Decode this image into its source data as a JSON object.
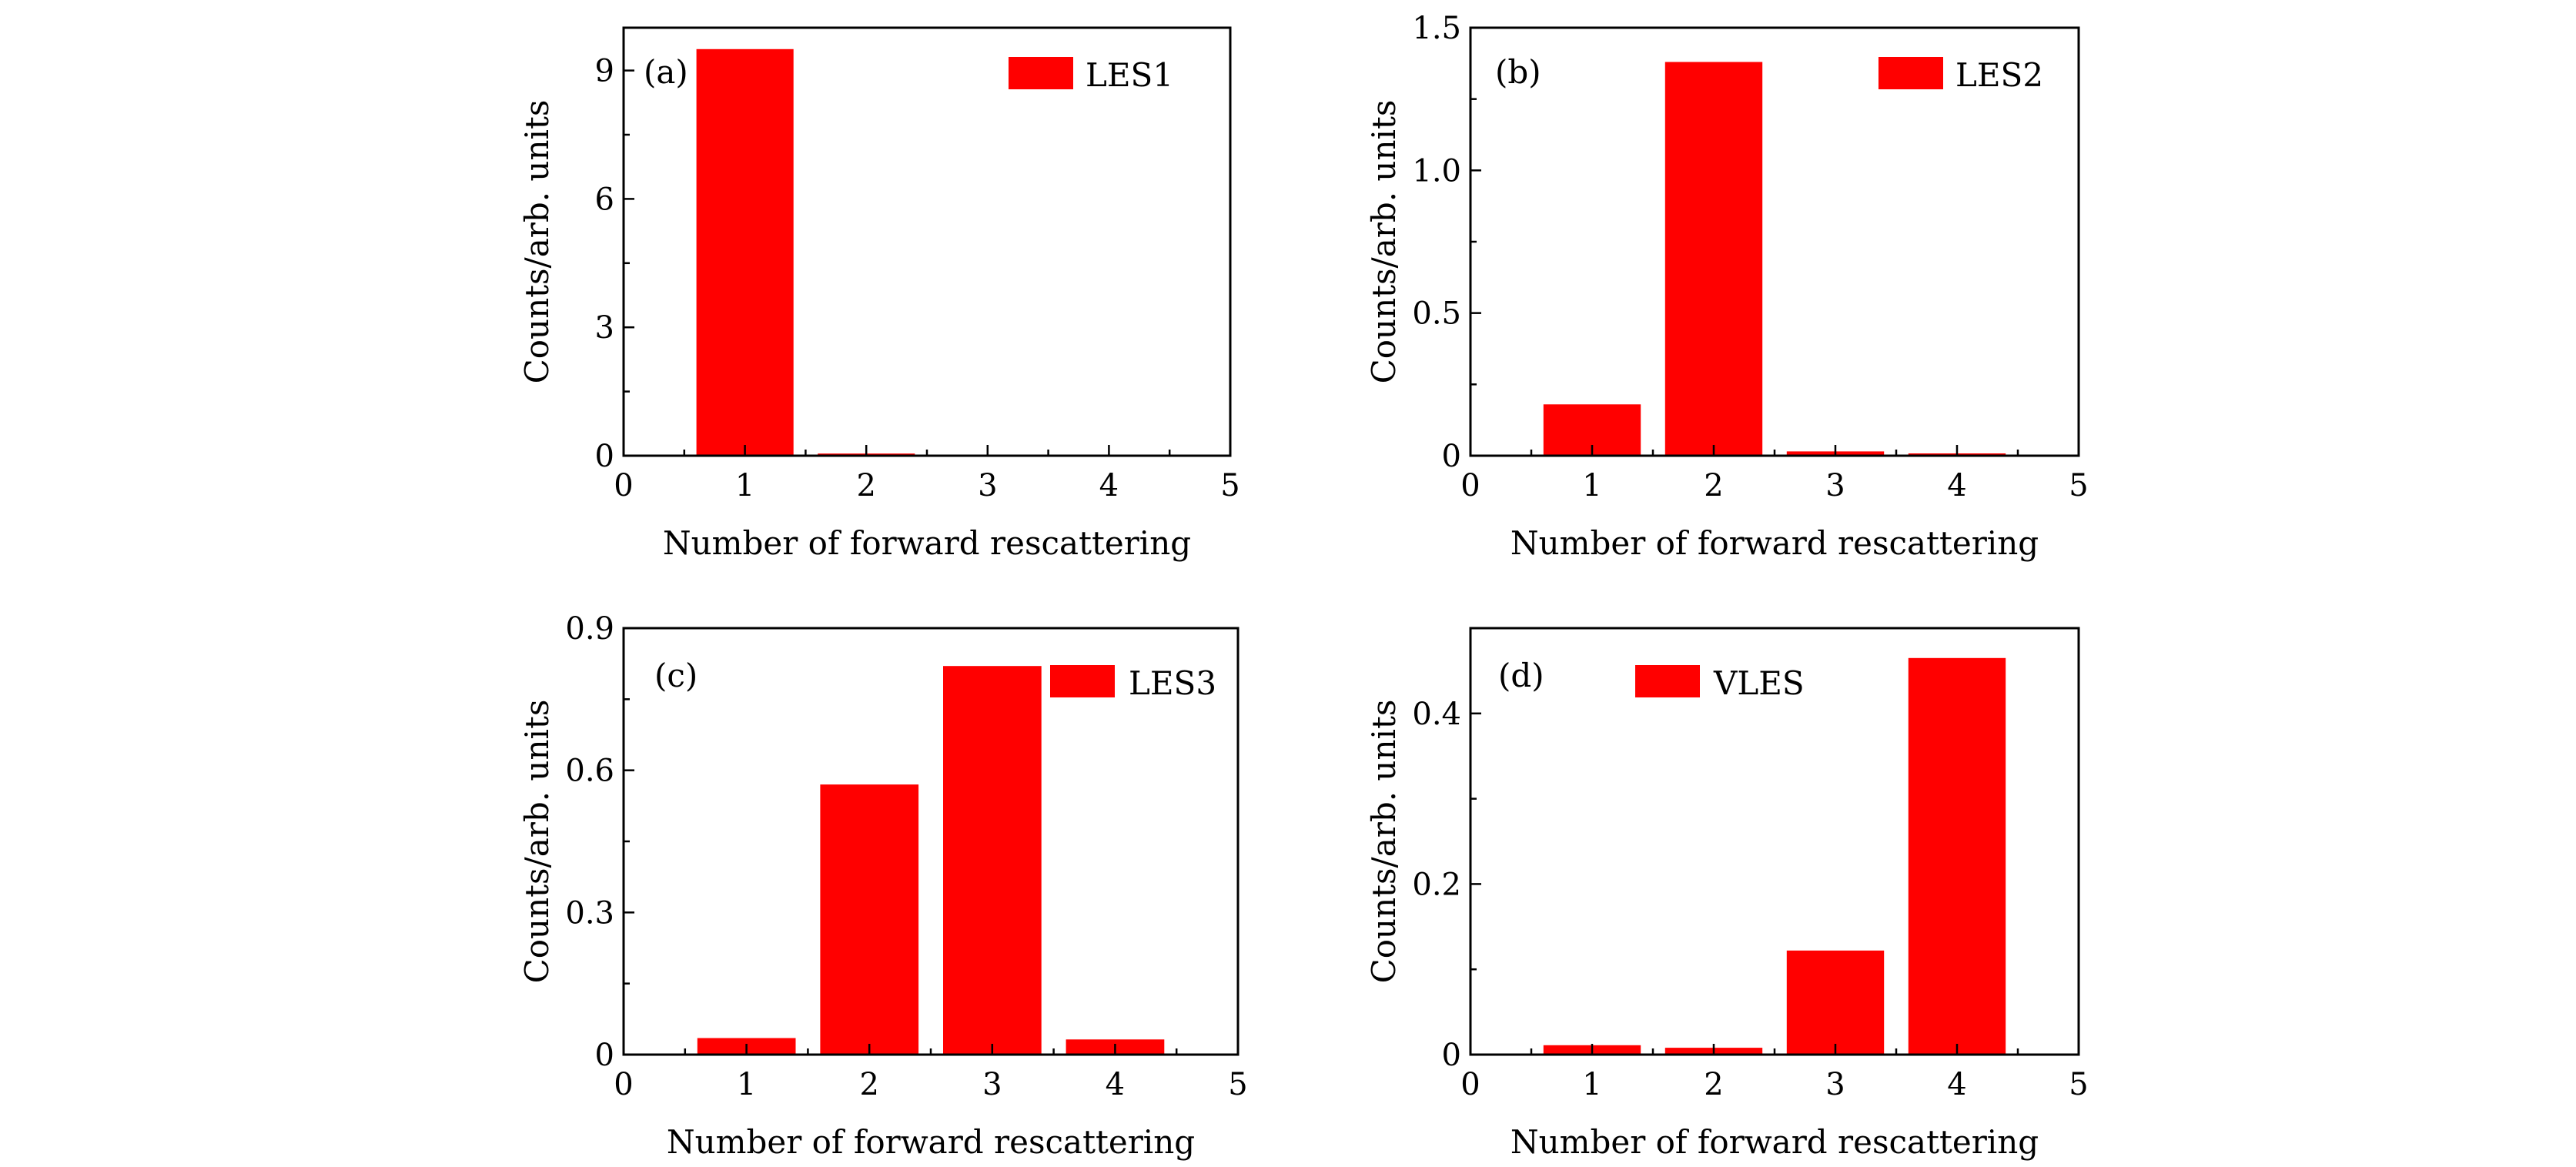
{
  "figure": {
    "bar_color": "#ff0000",
    "axis_color": "#000000"
  },
  "chart_data": [
    {
      "type": "bar",
      "panel": "(a)",
      "legend": "LES1",
      "xlabel": "Number of forward rescattering",
      "ylabel": "Counts/arb. units",
      "categories": [
        1,
        2,
        3,
        4
      ],
      "values": [
        9.5,
        0.05,
        0.02,
        0.0
      ],
      "xlim": [
        0,
        5
      ],
      "ylim": [
        0,
        10
      ],
      "xticks": [
        "0",
        "1",
        "2",
        "3",
        "4",
        "5"
      ],
      "yticks": [
        {
          "value": 0,
          "label": "0"
        },
        {
          "value": 3,
          "label": "3"
        },
        {
          "value": 6,
          "label": "6"
        },
        {
          "value": 9,
          "label": "9"
        }
      ]
    },
    {
      "type": "bar",
      "panel": "(b)",
      "legend": "LES2",
      "xlabel": "Number of forward rescattering",
      "ylabel": "Counts/arb. units",
      "categories": [
        1,
        2,
        3,
        4
      ],
      "values": [
        0.18,
        1.38,
        0.015,
        0.008
      ],
      "xlim": [
        0,
        5
      ],
      "ylim": [
        0,
        1.5
      ],
      "xticks": [
        "0",
        "1",
        "2",
        "3",
        "4",
        "5"
      ],
      "yticks": [
        {
          "value": 0,
          "label": "0"
        },
        {
          "value": 0.5,
          "label": "0.5"
        },
        {
          "value": 1.0,
          "label": "1.0"
        },
        {
          "value": 1.5,
          "label": "1.5"
        }
      ]
    },
    {
      "type": "bar",
      "panel": "(c)",
      "legend": "LES3",
      "xlabel": "Number of forward rescattering",
      "ylabel": "Counts/arb. units",
      "categories": [
        1,
        2,
        3,
        4
      ],
      "values": [
        0.035,
        0.57,
        0.82,
        0.032
      ],
      "xlim": [
        0,
        5
      ],
      "ylim": [
        0,
        0.9
      ],
      "xticks": [
        "0",
        "1",
        "2",
        "3",
        "4",
        "5"
      ],
      "yticks": [
        {
          "value": 0,
          "label": "0"
        },
        {
          "value": 0.3,
          "label": "0.3"
        },
        {
          "value": 0.6,
          "label": "0.6"
        },
        {
          "value": 0.9,
          "label": "0.9"
        }
      ]
    },
    {
      "type": "bar",
      "panel": "(d)",
      "legend": "VLES",
      "xlabel": "Number of forward rescattering",
      "ylabel": "Counts/arb. units",
      "categories": [
        1,
        2,
        3,
        4
      ],
      "values": [
        0.011,
        0.008,
        0.122,
        0.465
      ],
      "xlim": [
        0,
        5
      ],
      "ylim": [
        0,
        0.5
      ],
      "xticks": [
        "0",
        "1",
        "2",
        "3",
        "4",
        "5"
      ],
      "yticks": [
        {
          "value": 0,
          "label": "0"
        },
        {
          "value": 0.2,
          "label": "0.2"
        },
        {
          "value": 0.4,
          "label": "0.4"
        }
      ]
    }
  ]
}
